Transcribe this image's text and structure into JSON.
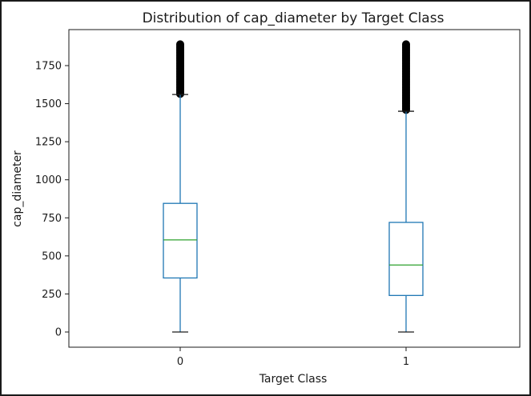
{
  "chart_data": {
    "type": "box",
    "title": "Distribution of cap_diameter by Target Class",
    "xlabel": "Target Class",
    "ylabel": "cap_diameter",
    "categories": [
      "0",
      "1"
    ],
    "boxes": [
      {
        "category": "0",
        "whisker_low": 0,
        "q1": 355,
        "median": 605,
        "q3": 845,
        "whisker_high": 1560,
        "outliers_from": 1560,
        "outliers_to": 1890
      },
      {
        "category": "1",
        "whisker_low": 0,
        "q1": 240,
        "median": 440,
        "q3": 720,
        "whisker_high": 1450,
        "outliers_from": 1450,
        "outliers_to": 1890
      }
    ],
    "yticks": [
      0,
      250,
      500,
      750,
      1000,
      1250,
      1500,
      1750
    ],
    "ylim": [
      -100,
      2000
    ],
    "colors": {
      "box": "#1f77b4",
      "median": "#2ca02c",
      "outlier": "#000000"
    },
    "grid": false
  }
}
